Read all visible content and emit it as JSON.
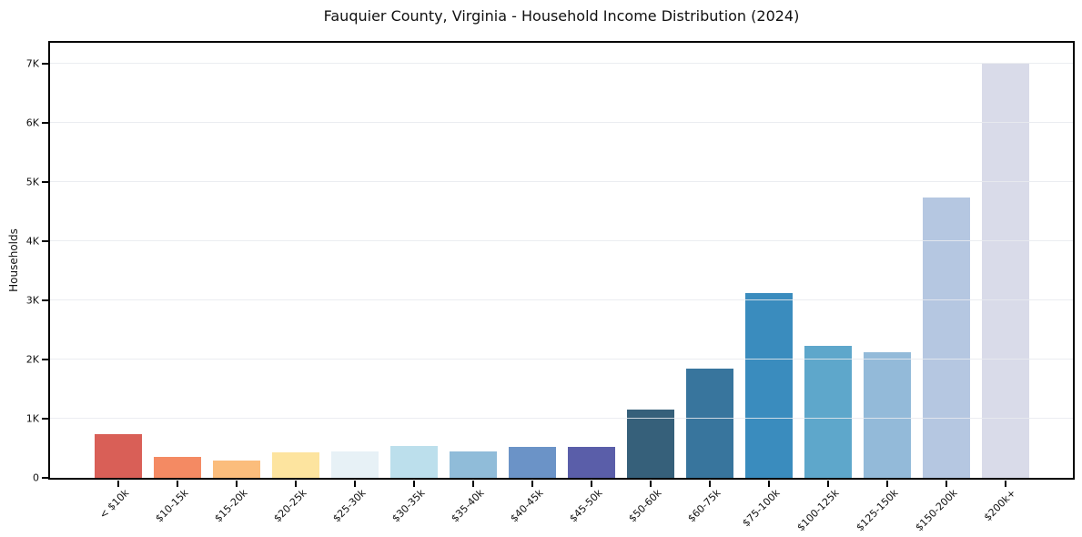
{
  "figure": {
    "title": "Fauquier County, Virginia - Household Income Distribution (2024)",
    "ylabel": "Households"
  },
  "chart_data": {
    "type": "bar",
    "title": "Fauquier County, Virginia - Household Income Distribution (2024)",
    "xlabel": "",
    "ylabel": "Households",
    "categories": [
      "< $10k",
      "$10-15k",
      "$15-20k",
      "$20-25k",
      "$25-30k",
      "$30-35k",
      "$35-40k",
      "$40-45k",
      "$45-50k",
      "$50-60k",
      "$60-75k",
      "$75-100k",
      "$100-125k",
      "$125-150k",
      "$150-200k",
      "$200k+"
    ],
    "values": [
      740,
      360,
      300,
      430,
      450,
      540,
      440,
      520,
      530,
      1160,
      1840,
      3120,
      2230,
      2120,
      4730,
      7000
    ],
    "bar_colors": [
      "#d95f57",
      "#f48a63",
      "#fbbd7c",
      "#fde49f",
      "#e7f1f6",
      "#bcdfec",
      "#90bcd9",
      "#6b93c7",
      "#5a5ea9",
      "#36607a",
      "#38759d",
      "#3a8cbe",
      "#5ea7cb",
      "#93bad9",
      "#b5c7e1",
      "#d9dbe9"
    ],
    "ytick_labels": [
      "0",
      "1K",
      "2K",
      "3K",
      "4K",
      "5K",
      "6K",
      "7K"
    ],
    "ytick_values": [
      0,
      1000,
      2000,
      3000,
      4000,
      5000,
      6000,
      7000
    ],
    "ylim": [
      0,
      7350
    ],
    "grid": "horizontal",
    "gridline_color": "#e7eaee",
    "legend_position": "none",
    "x_tick_rotation_deg": 45,
    "background_color": "#ffffff",
    "axis_color": "#000000"
  }
}
